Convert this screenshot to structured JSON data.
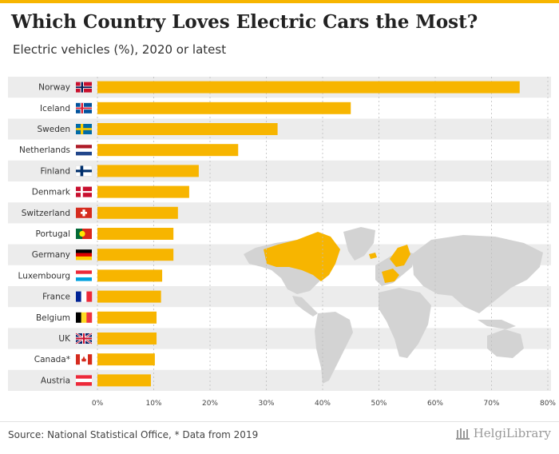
{
  "header": {
    "title": "Which Country Loves Electric Cars the Most?",
    "subtitle": "Electric vehicles (%), 2020 or latest"
  },
  "footer": {
    "source": "Source: National Statistical Office, * Data from 2019",
    "logo_text": "HelgiLibrary"
  },
  "colors": {
    "bar": "#f7b500",
    "row_band": "#ececec",
    "map_land": "#d3d3d3",
    "map_highlight": "#f7b500"
  },
  "chart_data": {
    "type": "bar",
    "orientation": "horizontal",
    "categories": [
      "Norway",
      "Iceland",
      "Sweden",
      "Netherlands",
      "Finland",
      "Denmark",
      "Switzerland",
      "Portugal",
      "Germany",
      "Luxembourg",
      "France",
      "Belgium",
      "UK",
      "Canada*",
      "Austria"
    ],
    "values": [
      75,
      45,
      32,
      25,
      18,
      16.3,
      14.3,
      13.5,
      13.5,
      11.5,
      11.3,
      10.5,
      10.5,
      10.2,
      9.5
    ],
    "xlim": [
      0,
      80
    ],
    "x_ticks": [
      0,
      10,
      20,
      30,
      40,
      50,
      60,
      70,
      80
    ],
    "x_tick_labels": [
      "0%",
      "10%",
      "20%",
      "30%",
      "40%",
      "50%",
      "60%",
      "70%",
      "80%"
    ],
    "grid": "vertical-dashed",
    "flags": [
      "norway-flag-icon",
      "iceland-flag-icon",
      "sweden-flag-icon",
      "netherlands-flag-icon",
      "finland-flag-icon",
      "denmark-flag-icon",
      "switzerland-flag-icon",
      "portugal-flag-icon",
      "germany-flag-icon",
      "luxembourg-flag-icon",
      "france-flag-icon",
      "belgium-flag-icon",
      "uk-flag-icon",
      "canada-flag-icon",
      "austria-flag-icon"
    ]
  }
}
